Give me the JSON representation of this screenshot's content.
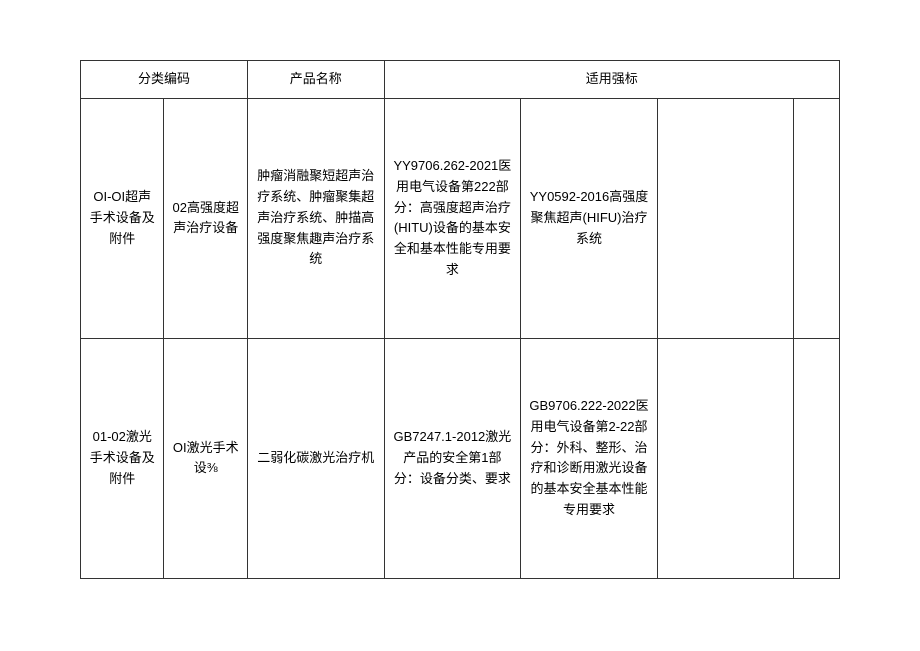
{
  "header": {
    "col_category": "分类编码",
    "col_product": "产品名称",
    "col_standard": "适用强标"
  },
  "rows": [
    {
      "cat1": "OI-OI超声手术设备及附件",
      "cat2": "02高强度超声治疗设备",
      "product": "肿瘤消融聚短超声治疗系统、肿瘤聚集超声治疗系统、肿描高强度聚焦趣声治疗系统",
      "std1": "YY9706.262-2021医用电气设备第222部分：高强度超声治疗(HITU)设备的基本安全和基本性能专用要求",
      "std2": "YY0592-2016高强度聚焦超声(HIFU)治疗系统",
      "std3": "",
      "std4": ""
    },
    {
      "cat1": "01-02激光手术设备及附件",
      "cat2": "OI激光手术设⅜",
      "product": "二弱化碳激光治疗机",
      "std1": "GB7247.1-2012激光产品的安全第1部分：设备分类、要求",
      "std2": "GB9706.222-2022医用电气设备第2-22部分：外科、整形、治疗和诊断用激光设备的基本安全基本性能专用要求",
      "std3": "",
      "std4": ""
    }
  ]
}
